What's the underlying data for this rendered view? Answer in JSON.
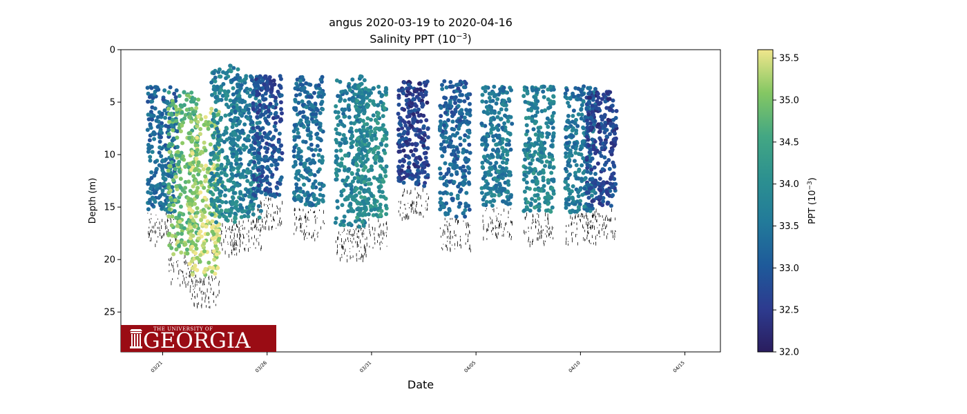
{
  "chart_data": {
    "type": "scatter",
    "title": "angus 2020-03-19 to 2020-04-16",
    "subtitle": "Salinity PPT (10",
    "subtitle_exp": "−3",
    "subtitle_end": ")",
    "xlabel": "Date",
    "ylabel": "Depth (m)",
    "y_inverted": true,
    "ylim": [
      0,
      28.8
    ],
    "xlim": [
      "2020-03-19",
      "2020-04-16"
    ],
    "x_ticks": [
      "03/21",
      "03/26",
      "03/31",
      "04/05",
      "04/10",
      "04/15"
    ],
    "y_ticks": [
      0,
      5,
      10,
      15,
      20,
      25
    ],
    "grid": false,
    "colorbar": {
      "label": "PPT (10",
      "label_exp": "−3",
      "label_end": ")",
      "min": 32.0,
      "max": 35.6,
      "ticks": [
        "32.0",
        "32.5",
        "33.0",
        "33.5",
        "34.0",
        "34.5",
        "35.0",
        "35.5"
      ],
      "colormap": [
        "#2a1d5e",
        "#2d3b8f",
        "#1e5a9a",
        "#227a9a",
        "#2c9090",
        "#43a783",
        "#84c763",
        "#f0e68c"
      ]
    },
    "profiles": [
      {
        "date": "2020-03-21",
        "top": 3.5,
        "bottom": 15.5,
        "salinity": 33.3
      },
      {
        "date": "2020-03-22",
        "top": 4.0,
        "bottom": 19.5,
        "salinity": 34.9
      },
      {
        "date": "2020-03-23",
        "top": 5.5,
        "bottom": 21.5,
        "salinity": 35.3
      },
      {
        "date": "2020-03-24",
        "top": 1.5,
        "bottom": 16.5,
        "salinity": 33.8
      },
      {
        "date": "2020-03-25",
        "top": 2.5,
        "bottom": 16.0,
        "salinity": 33.6
      },
      {
        "date": "2020-03-26",
        "top": 2.5,
        "bottom": 14.0,
        "salinity": 32.9
      },
      {
        "date": "2020-03-28",
        "top": 2.5,
        "bottom": 15.0,
        "salinity": 33.4
      },
      {
        "date": "2020-03-30",
        "top": 2.5,
        "bottom": 17.0,
        "salinity": 33.7
      },
      {
        "date": "2020-03-31",
        "top": 3.5,
        "bottom": 16.0,
        "salinity": 34.0
      },
      {
        "date": "2020-04-02",
        "top": 3.0,
        "bottom": 13.0,
        "salinity": 32.6
      },
      {
        "date": "2020-04-04",
        "top": 3.0,
        "bottom": 16.0,
        "salinity": 33.2
      },
      {
        "date": "2020-04-06",
        "top": 3.5,
        "bottom": 15.0,
        "salinity": 33.6
      },
      {
        "date": "2020-04-08",
        "top": 3.5,
        "bottom": 15.5,
        "salinity": 33.8
      },
      {
        "date": "2020-04-10",
        "top": 3.5,
        "bottom": 15.5,
        "salinity": 33.5
      },
      {
        "date": "2020-04-11",
        "top": 4.0,
        "bottom": 15.0,
        "salinity": 32.7
      }
    ],
    "logo": {
      "line1": "THE UNIVERSITY OF",
      "line2": "GEORGIA",
      "color": "#ba0c2f",
      "bg": "#9a0c14"
    }
  }
}
